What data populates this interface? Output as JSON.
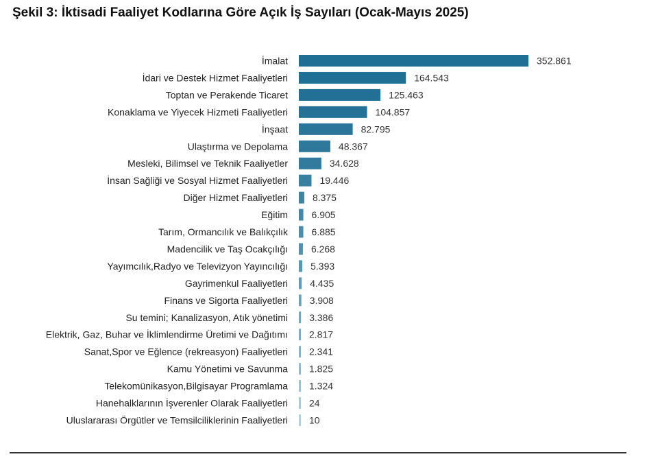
{
  "title": "Şekil 3: İktisadi Faaliyet Kodlarına Göre Açık İş Sayıları (Ocak-Mayıs 2025)",
  "colors": {
    "bar_dark": "#1f6e94",
    "bar_light": "#b7cfdc"
  },
  "chart_data": {
    "type": "bar",
    "orientation": "horizontal",
    "title": "Şekil 3: İktisadi Faaliyet Kodlarına Göre Açık İş Sayıları (Ocak-Mayıs 2025)",
    "xlabel": "",
    "ylabel": "",
    "grid": false,
    "categories": [
      "İmalat",
      "İdari ve Destek Hizmet Faaliyetleri",
      "Toptan ve Perakende Ticaret",
      "Konaklama ve Yiyecek Hizmeti Faaliyetleri",
      "İnşaat",
      "Ulaştırma ve Depolama",
      "Mesleki, Bilimsel ve Teknik Faaliyetler",
      "İnsan Sağliği ve Sosyal Hizmet Faaliyetleri",
      "Diğer Hizmet Faaliyetleri",
      "Eğitim",
      "Tarım, Ormancılık ve Balıkçılık",
      "Madencilik ve Taş Ocakçılığı",
      "Yayımcılık,Radyo ve Televizyon Yayıncılığı",
      "Gayrimenkul Faaliyetleri",
      "Finans ve Sigorta Faaliyetleri",
      "Su temini; Kanalizasyon, Atık yönetimi",
      "Elektrik, Gaz, Buhar ve İklimlendirme Üretimi ve Dağıtımı",
      "Sanat,Spor ve Eğlence (rekreasyon) Faaliyetleri",
      "Kamu Yönetimi ve Savunma",
      "Telekomünikasyon,Bilgisayar Programlama",
      "Hanehalklarının İşverenler Olarak Faaliyetleri",
      "Uluslararası Örgütler ve Temsilciliklerinin Faaliyetleri"
    ],
    "values": [
      352861,
      164543,
      125463,
      104857,
      82795,
      48367,
      34628,
      19446,
      8375,
      6905,
      6885,
      6268,
      5393,
      4435,
      3908,
      3386,
      2817,
      2341,
      1825,
      1324,
      24,
      10
    ],
    "value_labels": [
      "352.861",
      "164.543",
      "125.463",
      "104.857",
      "82.795",
      "48.367",
      "34.628",
      "19.446",
      "8.375",
      "6.905",
      "6.885",
      "6.268",
      "5.393",
      "4.435",
      "3.908",
      "3.386",
      "2.817",
      "2.341",
      "1.825",
      "1.324",
      "24",
      "10"
    ]
  }
}
